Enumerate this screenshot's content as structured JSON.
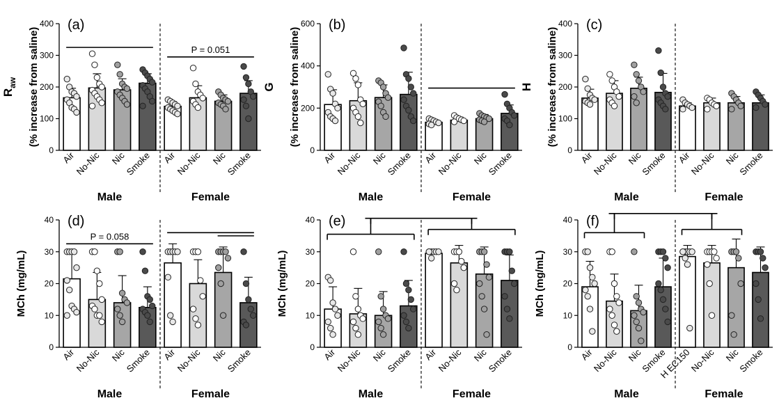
{
  "figure": {
    "panels": [
      {
        "label": "(a)",
        "ylabel_main": "R",
        "ylabel_sub": "aw",
        "ylabel_unit": "(% increase from saline)",
        "yticks": [
          "0",
          "100",
          "200",
          "300",
          "400"
        ]
      },
      {
        "label": "(b)",
        "ylabel_main": "G",
        "ylabel_sub": "",
        "ylabel_unit": "(% increase from saline)",
        "yticks": [
          "0",
          "200",
          "400",
          "600"
        ]
      },
      {
        "label": "(c)",
        "ylabel_main": "H",
        "ylabel_sub": "",
        "ylabel_unit": "(% increase from saline)",
        "yticks": [
          "0",
          "100",
          "200",
          "300",
          "400"
        ]
      },
      {
        "label": "(d)",
        "ylabel_main": "MCh (mg/mL)",
        "ylabel_sub": "",
        "ylabel_unit": "",
        "yticks": [
          "0",
          "10",
          "20",
          "30",
          "40"
        ]
      },
      {
        "label": "(e)",
        "ylabel_main": "MCh (mg/mL)",
        "ylabel_sub": "",
        "ylabel_unit": "",
        "yticks": [
          "0",
          "10",
          "20",
          "30",
          "40"
        ]
      },
      {
        "label": "(f)",
        "ylabel_main": "MCh (mg/mL)",
        "ylabel_sub": "",
        "ylabel_unit": "",
        "yticks": [
          "0",
          "10",
          "20",
          "30",
          "40"
        ]
      }
    ],
    "group_labels": [
      "Male",
      "Female"
    ]
  },
  "chart_data": [
    {
      "type": "bar",
      "panel": "(a)",
      "ylim": [
        0,
        400
      ],
      "categories": [
        "Air",
        "No-Nic",
        "Nic",
        "Smoke",
        "Air",
        "No-Nic",
        "Nic",
        "Smoke"
      ],
      "groups": [
        "Male",
        "Male",
        "Male",
        "Male",
        "Female",
        "Female",
        "Female",
        "Female"
      ],
      "values": [
        166,
        197,
        191,
        212,
        139,
        166,
        155,
        180
      ],
      "errors": [
        30,
        45,
        35,
        30,
        15,
        38,
        20,
        40
      ],
      "points": [
        [
          225,
          200,
          185,
          180,
          170,
          160,
          150,
          135,
          130,
          120
        ],
        [
          305,
          270,
          230,
          210,
          200,
          190,
          180,
          170,
          160,
          150,
          140
        ],
        [
          270,
          240,
          210,
          200,
          195,
          185,
          175,
          165,
          155,
          145
        ],
        [
          255,
          245,
          235,
          225,
          215,
          205,
          195,
          185,
          170,
          155,
          140
        ],
        [
          160,
          155,
          150,
          145,
          140,
          135,
          130,
          125,
          120,
          115
        ],
        [
          260,
          210,
          185,
          175,
          165,
          155,
          145,
          135
        ],
        [
          185,
          175,
          165,
          160,
          155,
          150,
          145,
          140,
          130
        ],
        [
          265,
          230,
          210,
          185,
          170,
          160,
          140,
          100
        ]
      ],
      "annotations": [
        {
          "text": "",
          "x_from": 0,
          "x_to": 3,
          "y": 325
        },
        {
          "text": "P = 0.051",
          "x_from": 4,
          "x_to": 7,
          "y": 295
        }
      ]
    },
    {
      "type": "bar",
      "panel": "(b)",
      "ylim": [
        0,
        600
      ],
      "categories": [
        "Air",
        "No-Nic",
        "Nic",
        "Smoke",
        "Air",
        "No-Nic",
        "Nic",
        "Smoke"
      ],
      "groups": [
        "Male",
        "Male",
        "Male",
        "Male",
        "Female",
        "Female",
        "Female",
        "Female"
      ],
      "values": [
        217,
        235,
        250,
        265,
        133,
        143,
        150,
        175
      ],
      "errors": [
        70,
        85,
        60,
        105,
        12,
        15,
        20,
        40
      ],
      "points": [
        [
          360,
          290,
          270,
          220,
          200,
          180,
          160,
          150,
          140
        ],
        [
          365,
          340,
          310,
          240,
          220,
          200,
          180,
          160,
          130
        ],
        [
          330,
          320,
          300,
          270,
          250,
          230,
          210,
          180,
          160
        ],
        [
          485,
          360,
          340,
          300,
          270,
          240,
          210,
          190,
          160,
          140
        ],
        [
          150,
          145,
          140,
          135,
          130,
          125,
          120
        ],
        [
          165,
          155,
          150,
          145,
          140,
          135
        ],
        [
          175,
          165,
          160,
          155,
          150,
          145,
          140,
          135
        ],
        [
          265,
          220,
          200,
          180,
          165,
          150,
          140,
          120
        ]
      ],
      "annotations": [
        {
          "text": "",
          "x_from": 4,
          "x_to": 7,
          "y": 295
        }
      ]
    },
    {
      "type": "bar",
      "panel": "(c)",
      "ylim": [
        0,
        400
      ],
      "categories": [
        "Air",
        "No-Nic",
        "Nic",
        "Smoke",
        "Air",
        "No-Nic",
        "Nic",
        "Smoke"
      ],
      "groups": [
        "Male",
        "Male",
        "Male",
        "Male",
        "Female",
        "Female",
        "Female",
        "Female"
      ],
      "values": [
        165,
        180,
        196,
        183,
        140,
        150,
        150,
        150
      ],
      "errors": [
        28,
        40,
        35,
        60,
        10,
        15,
        20,
        25
      ],
      "points": [
        [
          225,
          195,
          175,
          165,
          160,
          155,
          150,
          145
        ],
        [
          240,
          220,
          200,
          185,
          170,
          160,
          150,
          140
        ],
        [
          270,
          240,
          220,
          200,
          185,
          170,
          150
        ],
        [
          315,
          245,
          200,
          180,
          170,
          160,
          150,
          140,
          130
        ],
        [
          160,
          150,
          145,
          140,
          135,
          130
        ],
        [
          165,
          160,
          150,
          145,
          140,
          130
        ],
        [
          180,
          170,
          160,
          150,
          140,
          130
        ],
        [
          185,
          175,
          165,
          155,
          145,
          135
        ]
      ],
      "annotations": []
    },
    {
      "type": "bar",
      "panel": "(d)",
      "ylim": [
        0,
        40
      ],
      "categories": [
        "Air",
        "No-Nic",
        "Nic",
        "Smoke",
        "Air",
        "No-Nic",
        "Nic",
        "Smoke"
      ],
      "groups": [
        "Male",
        "Male",
        "Male",
        "Male",
        "Female",
        "Female",
        "Female",
        "Female"
      ],
      "values": [
        21.5,
        15,
        14,
        12.5,
        26.5,
        20,
        23.5,
        14
      ],
      "errors": [
        8,
        8.5,
        8.5,
        6.5,
        6,
        7.5,
        8,
        8
      ],
      "points": [
        [
          30,
          30,
          30,
          30,
          25,
          21,
          18,
          13,
          12,
          11,
          10
        ],
        [
          30,
          30,
          24,
          20,
          15,
          13,
          12,
          10,
          10,
          8
        ],
        [
          30,
          30,
          17,
          15,
          14,
          12,
          10,
          8
        ],
        [
          30,
          24,
          16,
          15,
          13,
          12,
          11,
          10,
          8
        ],
        [
          30,
          30,
          30,
          30,
          30,
          22,
          10,
          8
        ],
        [
          30,
          30,
          30,
          21,
          16,
          12,
          9,
          7
        ],
        [
          30,
          30,
          30,
          30,
          28,
          25,
          20,
          10
        ],
        [
          30,
          20,
          15,
          12,
          10,
          8,
          7
        ]
      ],
      "annotations": [
        {
          "text": "P = 0.058",
          "x_from": 0,
          "x_to": 3,
          "y": 32.5
        },
        {
          "text": "",
          "x_from": 4,
          "x_to": 7,
          "y": 36
        },
        {
          "text": "",
          "x_from": 6,
          "x_to": 7,
          "y": 35
        }
      ]
    },
    {
      "type": "bar",
      "panel": "(e)",
      "ylim": [
        0,
        40
      ],
      "categories": [
        "Air",
        "No-Nic",
        "Nic",
        "Smoke",
        "Air",
        "No-Nic",
        "Nic",
        "Smoke"
      ],
      "groups": [
        "Male",
        "Male",
        "Male",
        "Male",
        "Female",
        "Female",
        "Female",
        "Female"
      ],
      "values": [
        12,
        10.5,
        10,
        13,
        29.5,
        26.5,
        23,
        21
      ],
      "errors": [
        7,
        8,
        7.5,
        8,
        1,
        5.5,
        8.5,
        8
      ],
      "points": [
        [
          22,
          21,
          14,
          12,
          10,
          8,
          6,
          4
        ],
        [
          30,
          16,
          12,
          10,
          9,
          8,
          6,
          4
        ],
        [
          30,
          16,
          12,
          10,
          9,
          8,
          6,
          4
        ],
        [
          30,
          20,
          18,
          15,
          12,
          10,
          8,
          6
        ],
        [
          30,
          30,
          30,
          30,
          30,
          30,
          28
        ],
        [
          30,
          30,
          30,
          27,
          25,
          20,
          18
        ],
        [
          30,
          30,
          30,
          26,
          22,
          20,
          16,
          12,
          4
        ],
        [
          30,
          30,
          30,
          24,
          20,
          16,
          12,
          9
        ]
      ],
      "annotations": [
        {
          "text": "",
          "x_from": 0,
          "x_to": 3,
          "y": 35.5
        },
        {
          "text": "",
          "x_from": 4,
          "x_to": 7,
          "y": 37
        },
        {
          "text": "",
          "x_from": 1.5,
          "x_to": 5.5,
          "y": 40.5
        }
      ]
    },
    {
      "type": "bar",
      "panel": "(f)",
      "ylim": [
        0,
        40
      ],
      "categories": [
        "Air",
        "No-Nic",
        "Nic",
        "Smoke",
        "H EC150",
        "No-Nic",
        "Nic",
        "Smoke"
      ],
      "groups": [
        "Male",
        "Male",
        "Male",
        "Male",
        "Female",
        "Female",
        "Female",
        "Female"
      ],
      "values": [
        19,
        14.5,
        11.5,
        19,
        28.5,
        26.5,
        25,
        23.5
      ],
      "errors": [
        8,
        8.5,
        8,
        9,
        3.5,
        5.5,
        9,
        8
      ],
      "points": [
        [
          30,
          30,
          25,
          22,
          20,
          18,
          16,
          12,
          5
        ],
        [
          30,
          30,
          20,
          16,
          14,
          12,
          10,
          7,
          5
        ],
        [
          30,
          16,
          14,
          12,
          11,
          10,
          8,
          6,
          2
        ],
        [
          30,
          30,
          30,
          28,
          25,
          20,
          18,
          15,
          12,
          8
        ],
        [
          30,
          30,
          30,
          30,
          30,
          30,
          28,
          26,
          6
        ],
        [
          30,
          30,
          30,
          30,
          28,
          26,
          20,
          10
        ],
        [
          30,
          30,
          30,
          28,
          20,
          10,
          4
        ],
        [
          30,
          30,
          30,
          28,
          25,
          20,
          15,
          9
        ]
      ],
      "annotations": [
        {
          "text": "",
          "x_from": 0,
          "x_to": 2,
          "y": 36
        },
        {
          "text": "",
          "x_from": 4,
          "x_to": 6,
          "y": 37
        },
        {
          "text": "",
          "x_from": 1,
          "x_to": 5,
          "y": 42
        }
      ]
    }
  ]
}
